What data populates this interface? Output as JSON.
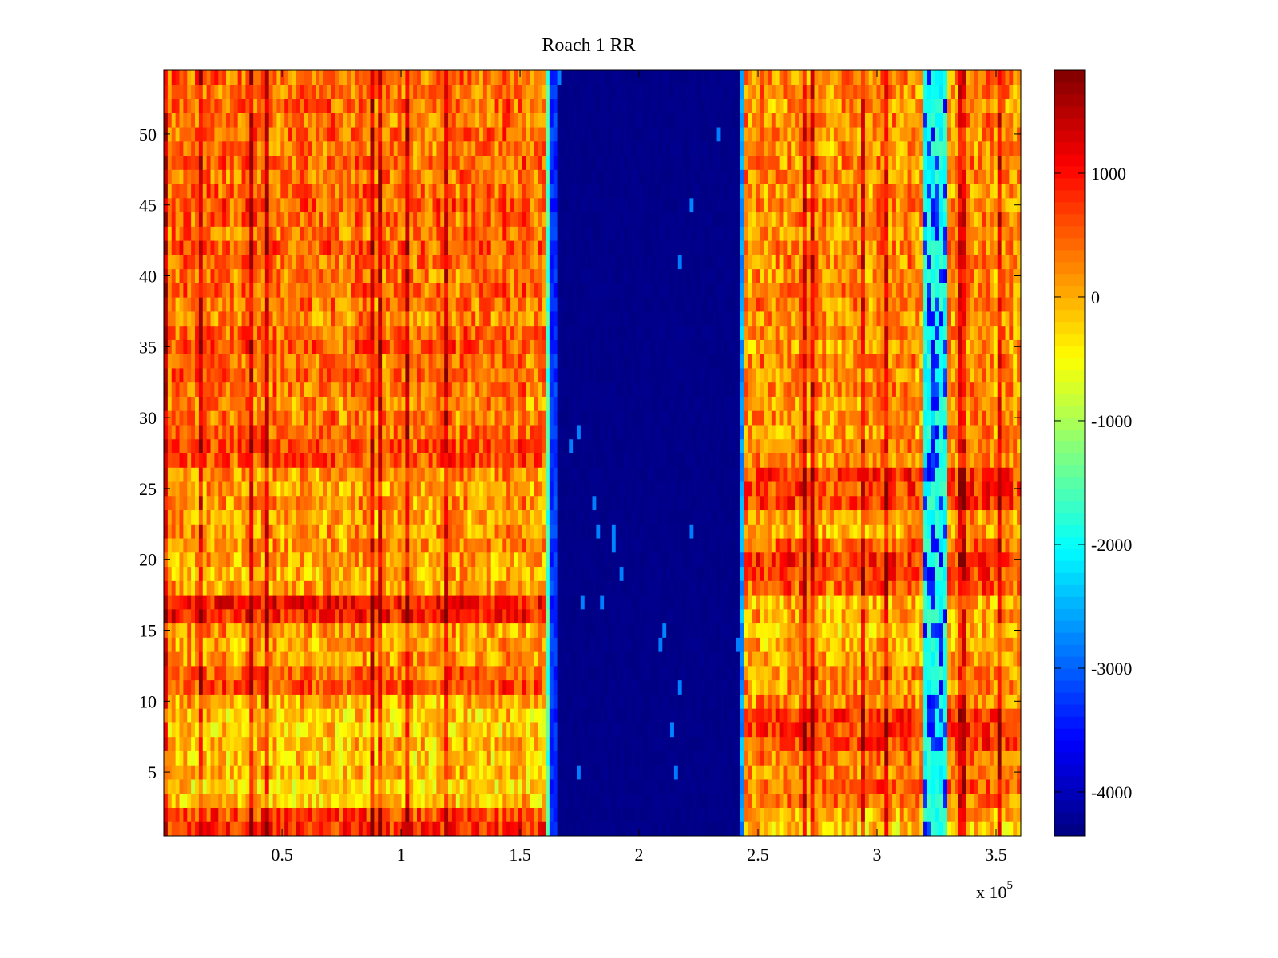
{
  "chart_data": {
    "type": "heatmap",
    "title": "Roach 1 RR",
    "xlabel": "",
    "ylabel": "",
    "x_multiplier_label": "x 10",
    "x_multiplier_exp": "5",
    "xlim": [
      0.003,
      3.604
    ],
    "ylim": [
      0.5,
      54.5
    ],
    "rows": 54,
    "columns": 220,
    "clim": [
      -4355,
      1832
    ],
    "colormap": "jet",
    "xticks": [
      {
        "v": 0.5,
        "label": "0.5"
      },
      {
        "v": 1,
        "label": "1"
      },
      {
        "v": 1.5,
        "label": "1.5"
      },
      {
        "v": 2,
        "label": "2"
      },
      {
        "v": 2.5,
        "label": "2.5"
      },
      {
        "v": 3,
        "label": "3"
      },
      {
        "v": 3.5,
        "label": "3.5"
      }
    ],
    "yticks": [
      {
        "v": 5,
        "label": "5"
      },
      {
        "v": 10,
        "label": "10"
      },
      {
        "v": 15,
        "label": "15"
      },
      {
        "v": 20,
        "label": "20"
      },
      {
        "v": 25,
        "label": "25"
      },
      {
        "v": 30,
        "label": "30"
      },
      {
        "v": 35,
        "label": "35"
      },
      {
        "v": 40,
        "label": "40"
      },
      {
        "v": 45,
        "label": "45"
      },
      {
        "v": 50,
        "label": "50"
      }
    ],
    "colorbar_ticks": [
      {
        "v": 1000,
        "label": "1000"
      },
      {
        "v": 0,
        "label": "0"
      },
      {
        "v": -1000,
        "label": "-1000"
      },
      {
        "v": -2000,
        "label": "-2000"
      },
      {
        "v": -3000,
        "label": "-3000"
      },
      {
        "v": -4000,
        "label": "-4000"
      }
    ],
    "x_segments": [
      {
        "from": 0,
        "to": 1.6,
        "base": 250,
        "noise": 550,
        "side": "left"
      },
      {
        "from": 1.6,
        "to": 1.62,
        "base": -1600,
        "noise": 300,
        "side": "none"
      },
      {
        "from": 1.62,
        "to": 1.65,
        "base": -3300,
        "noise": 300,
        "side": "none"
      },
      {
        "from": 1.65,
        "to": 2.42,
        "base": -4300,
        "noise": 40,
        "side": "none"
      },
      {
        "from": 2.42,
        "to": 2.45,
        "base": -2600,
        "noise": 400,
        "side": "none"
      },
      {
        "from": 2.45,
        "to": 3.2,
        "base": 250,
        "noise": 550,
        "side": "right"
      },
      {
        "from": 3.2,
        "to": 3.3,
        "base": -1900,
        "noise": 300,
        "side": "none"
      },
      {
        "from": 3.3,
        "to": 3.61,
        "base": 250,
        "noise": 550,
        "side": "right"
      }
    ],
    "row_bias_left": [
      600,
      400,
      -400,
      -500,
      -300,
      -400,
      -300,
      -500,
      -400,
      -200,
      300,
      200,
      -100,
      -200,
      -100,
      700,
      700,
      -200,
      -300,
      -200,
      -100,
      -100,
      -200,
      -100,
      -200,
      -100,
      300,
      400,
      200,
      100,
      0,
      100,
      200,
      100,
      300,
      200,
      0,
      100,
      200,
      100,
      200,
      300,
      100,
      200,
      300,
      200,
      100,
      200,
      100,
      200,
      100,
      200,
      100,
      200
    ],
    "row_bias_right": [
      -400,
      -200,
      100,
      200,
      0,
      100,
      400,
      500,
      500,
      0,
      -100,
      0,
      -200,
      -300,
      -300,
      -200,
      -300,
      300,
      400,
      500,
      200,
      -200,
      -100,
      400,
      500,
      500,
      -100,
      0,
      -100,
      0,
      -100,
      0,
      -100,
      0,
      -100,
      0,
      -100,
      0,
      0,
      -100,
      0,
      0,
      -100,
      0,
      0,
      -100,
      0,
      0,
      -100,
      0,
      0,
      -100,
      0,
      0
    ]
  }
}
